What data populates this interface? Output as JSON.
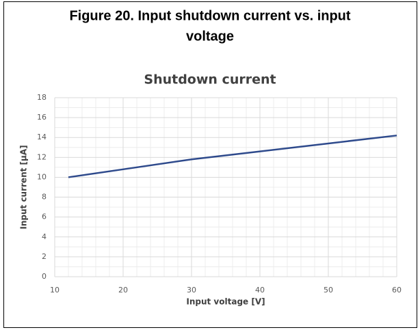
{
  "caption": [
    "Figure 20. Input shutdown current vs. input",
    "voltage"
  ],
  "chart_data": {
    "type": "line",
    "title": "Shutdown current",
    "x_label": "Input voltage [V]",
    "y_label": "Input current [µA]",
    "x": [
      12,
      20,
      30,
      40,
      50,
      60
    ],
    "series": [
      {
        "name": "Shutdown current",
        "color": "#2e4a8c",
        "values": [
          10,
          10.8,
          11.8,
          12.6,
          13.4,
          14.2
        ]
      }
    ],
    "xlim": [
      10,
      60
    ],
    "xticks": [
      10,
      20,
      30,
      40,
      50,
      60
    ],
    "ylim": [
      0,
      18
    ],
    "yticks": [
      0,
      2,
      4,
      6,
      8,
      10,
      12,
      14,
      16,
      18
    ],
    "grid": true
  }
}
